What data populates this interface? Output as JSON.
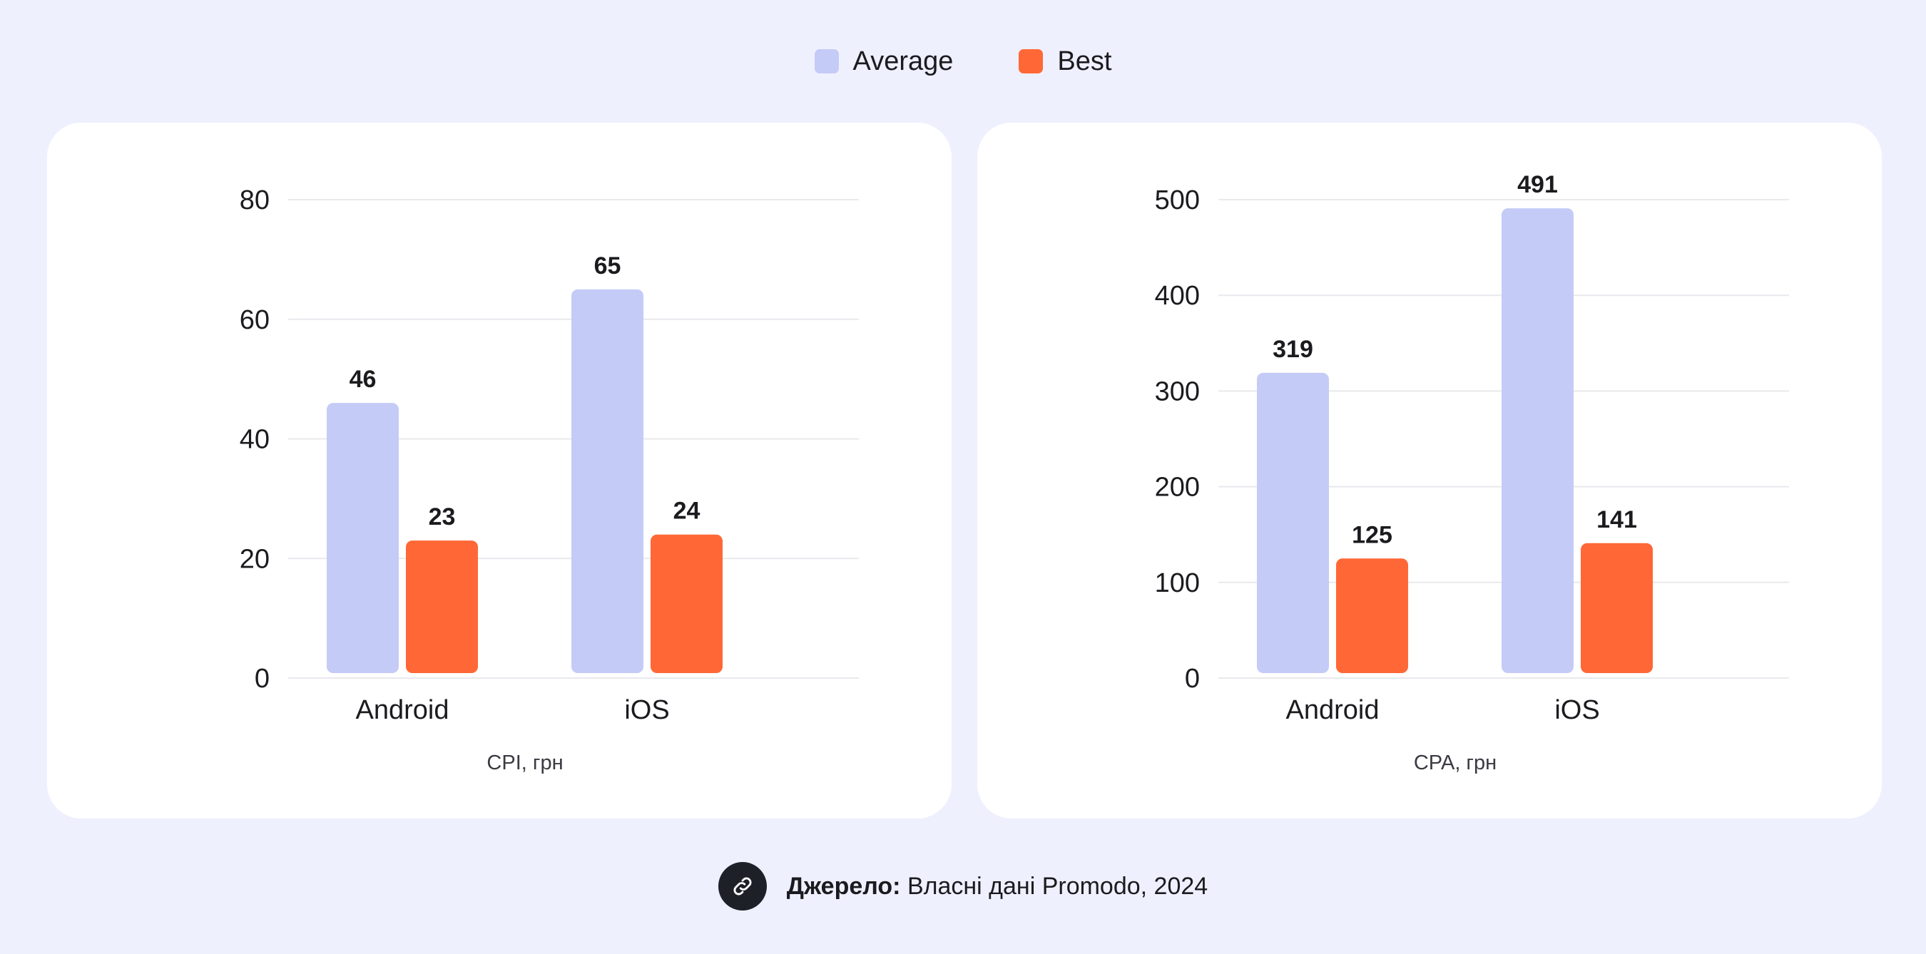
{
  "legend": {
    "items": [
      {
        "label": "Average",
        "color": "#c5cbf7"
      },
      {
        "label": "Best",
        "color": "#ff6836"
      }
    ]
  },
  "footer": {
    "icon": "link-icon",
    "source_label": "Джерело:",
    "source_text": "Власні дані Promodo, 2024"
  },
  "chart_data": [
    {
      "type": "bar",
      "categories": [
        "Android",
        "iOS"
      ],
      "series": [
        {
          "name": "Average",
          "values": [
            46,
            65
          ],
          "color": "#c5cbf7"
        },
        {
          "name": "Best",
          "values": [
            23,
            24
          ],
          "color": "#ff6836"
        }
      ],
      "xlabel": "CPI, грн",
      "ylabel": "",
      "ylim": [
        0,
        80
      ],
      "yticks": [
        0,
        20,
        40,
        60,
        80
      ],
      "grid": true,
      "legend": "top-center"
    },
    {
      "type": "bar",
      "categories": [
        "Android",
        "iOS"
      ],
      "series": [
        {
          "name": "Average",
          "values": [
            319,
            491
          ],
          "color": "#c5cbf7"
        },
        {
          "name": "Best",
          "values": [
            125,
            141
          ],
          "color": "#ff6836"
        }
      ],
      "xlabel": "CPA, грн",
      "ylabel": "",
      "ylim": [
        0,
        500
      ],
      "yticks": [
        0,
        100,
        200,
        300,
        400,
        500
      ],
      "grid": true,
      "legend": "top-center"
    }
  ]
}
